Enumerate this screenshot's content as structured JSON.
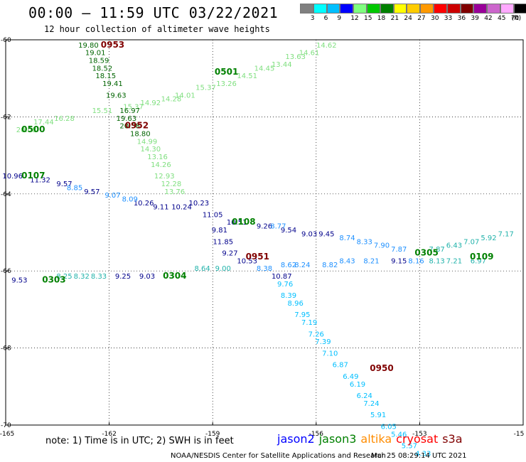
{
  "header": {
    "title": "00:00 – 11:59 UTC 03/22/2021",
    "subtitle": "12 hour collection of altimeter wave heights"
  },
  "colorbar": {
    "unit_label": "(ft)",
    "bins": [
      {
        "label": "3",
        "color": "#808080"
      },
      {
        "label": "6",
        "color": "#00ffff"
      },
      {
        "label": "9",
        "color": "#00bfff"
      },
      {
        "label": "12",
        "color": "#0000ff"
      },
      {
        "label": "15",
        "color": "#7fff7f"
      },
      {
        "label": "18",
        "color": "#00c800"
      },
      {
        "label": "21",
        "color": "#008000"
      },
      {
        "label": "24",
        "color": "#ffff00"
      },
      {
        "label": "27",
        "color": "#ffcc00"
      },
      {
        "label": "30",
        "color": "#ff9900"
      },
      {
        "label": "33",
        "color": "#ff0000"
      },
      {
        "label": "36",
        "color": "#cc0000"
      },
      {
        "label": "39",
        "color": "#800000"
      },
      {
        "label": "42",
        "color": "#990099"
      },
      {
        "label": "45",
        "color": "#cc66cc"
      },
      {
        "label": "70",
        "color": "#ffaaff"
      },
      {
        "label": "",
        "color": "#000000"
      }
    ]
  },
  "chart_data": {
    "type": "scatter",
    "x_ticks": [
      "-165",
      "-162",
      "-159",
      "-156",
      "-153",
      "-15"
    ],
    "y_ticks": [
      "-60",
      "-62",
      "-64",
      "-66",
      "-68",
      "-70"
    ],
    "xlim": [
      -165,
      -150
    ],
    "ylim": [
      -70,
      -60
    ],
    "grid": true,
    "pass_labels": [
      {
        "text": "0953",
        "lon": -161.9,
        "lat": -60.2,
        "color": "#800000"
      },
      {
        "text": "0501",
        "lon": -158.6,
        "lat": -60.9,
        "color": "#008000"
      },
      {
        "text": "0952",
        "lon": -161.2,
        "lat": -62.3,
        "color": "#800000"
      },
      {
        "text": "0500",
        "lon": -164.2,
        "lat": -62.4,
        "color": "#008000"
      },
      {
        "text": "0107",
        "lon": -164.2,
        "lat": -63.6,
        "color": "#008000"
      },
      {
        "text": "0108",
        "lon": -158.1,
        "lat": -64.8,
        "color": "#008000"
      },
      {
        "text": "0951",
        "lon": -157.7,
        "lat": -65.7,
        "color": "#800000"
      },
      {
        "text": "0305",
        "lon": -152.8,
        "lat": -65.6,
        "color": "#008000"
      },
      {
        "text": "0109",
        "lon": -151.2,
        "lat": -65.7,
        "color": "#008000"
      },
      {
        "text": "0303",
        "lon": -163.6,
        "lat": -66.3,
        "color": "#008000"
      },
      {
        "text": "0304",
        "lon": -160.1,
        "lat": -66.2,
        "color": "#008000"
      },
      {
        "text": "0950",
        "lon": -154.1,
        "lat": -68.6,
        "color": "#800000"
      }
    ],
    "tracks": [
      {
        "color": "#7fdf7f",
        "values": [
          {
            "v": "14.62",
            "lon": -155.7,
            "lat": -60.2
          },
          {
            "v": "14.61",
            "lon": -156.2,
            "lat": -60.4
          },
          {
            "v": "13.63",
            "lon": -156.6,
            "lat": -60.5
          },
          {
            "v": "13.44",
            "lon": -157.0,
            "lat": -60.7
          },
          {
            "v": "14.45",
            "lon": -157.5,
            "lat": -60.8
          },
          {
            "v": "14.51",
            "lon": -158.0,
            "lat": -61.0
          },
          {
            "v": "13.26",
            "lon": -158.6,
            "lat": -61.2
          },
          {
            "v": "15.37",
            "lon": -159.2,
            "lat": -61.3
          },
          {
            "v": "14.01",
            "lon": -159.8,
            "lat": -61.5
          },
          {
            "v": "14.28",
            "lon": -160.2,
            "lat": -61.6
          },
          {
            "v": "14.92",
            "lon": -160.8,
            "lat": -61.7
          },
          {
            "v": "15.37",
            "lon": -161.3,
            "lat": -61.8
          },
          {
            "v": "15.51",
            "lon": -162.2,
            "lat": -61.9
          },
          {
            "v": "16.28",
            "lon": -163.3,
            "lat": -62.1
          },
          {
            "v": "17.44",
            "lon": -163.9,
            "lat": -62.2
          },
          {
            "v": "20.08",
            "lon": -164.4,
            "lat": -62.4
          }
        ]
      },
      {
        "color": "#006400",
        "values": [
          {
            "v": "19.80",
            "lon": -162.6,
            "lat": -60.2
          },
          {
            "v": "19.01",
            "lon": -162.4,
            "lat": -60.4
          },
          {
            "v": "18.59",
            "lon": -162.3,
            "lat": -60.6
          },
          {
            "v": "18.52",
            "lon": -162.2,
            "lat": -60.8
          },
          {
            "v": "18.15",
            "lon": -162.1,
            "lat": -61.0
          },
          {
            "v": "19.41",
            "lon": -161.9,
            "lat": -61.2
          },
          {
            "v": "19.63",
            "lon": -161.8,
            "lat": -61.5
          },
          {
            "v": "16.97",
            "lon": -161.4,
            "lat": -61.9
          },
          {
            "v": "19.63",
            "lon": -161.5,
            "lat": -62.1
          },
          {
            "v": "20.58",
            "lon": -161.4,
            "lat": -62.3
          },
          {
            "v": "18.80",
            "lon": -161.1,
            "lat": -62.5
          }
        ]
      },
      {
        "color": "#7fdf7f",
        "values": [
          {
            "v": "14.99",
            "lon": -160.9,
            "lat": -62.7
          },
          {
            "v": "14.30",
            "lon": -160.8,
            "lat": -62.9
          },
          {
            "v": "13.16",
            "lon": -160.6,
            "lat": -63.1
          },
          {
            "v": "14.26",
            "lon": -160.5,
            "lat": -63.3
          },
          {
            "v": "12.93",
            "lon": -160.4,
            "lat": -63.6
          },
          {
            "v": "12.28",
            "lon": -160.2,
            "lat": -63.8
          },
          {
            "v": "13.76",
            "lon": -160.1,
            "lat": -64.0
          }
        ]
      },
      {
        "color": "#00008b",
        "values": [
          {
            "v": "10.96",
            "lon": -164.8,
            "lat": -63.6
          },
          {
            "v": "11.32",
            "lon": -164.0,
            "lat": -63.7
          },
          {
            "v": "9.57",
            "lon": -163.3,
            "lat": -63.8
          },
          {
            "v": "9.57",
            "lon": -162.5,
            "lat": -64.0
          },
          {
            "v": "10.26",
            "lon": -161.0,
            "lat": -64.3
          },
          {
            "v": "9.11",
            "lon": -160.5,
            "lat": -64.4
          },
          {
            "v": "10.24",
            "lon": -159.9,
            "lat": -64.4
          },
          {
            "v": "10.23",
            "lon": -159.4,
            "lat": -64.3
          },
          {
            "v": "11.05",
            "lon": -159.0,
            "lat": -64.6
          },
          {
            "v": "10.51",
            "lon": -158.3,
            "lat": -64.8
          },
          {
            "v": "9.81",
            "lon": -158.8,
            "lat": -65.0
          },
          {
            "v": "11.85",
            "lon": -158.7,
            "lat": -65.3
          },
          {
            "v": "9.27",
            "lon": -158.5,
            "lat": -65.6
          },
          {
            "v": "10.53",
            "lon": -158.0,
            "lat": -65.8
          },
          {
            "v": "9.26",
            "lon": -157.5,
            "lat": -64.9
          },
          {
            "v": "9.54",
            "lon": -156.8,
            "lat": -65.0
          },
          {
            "v": "9.03",
            "lon": -156.2,
            "lat": -65.1
          },
          {
            "v": "9.45",
            "lon": -155.7,
            "lat": -65.1
          },
          {
            "v": "9.15",
            "lon": -153.6,
            "lat": -65.8
          },
          {
            "v": "9.25",
            "lon": -161.6,
            "lat": -66.2
          },
          {
            "v": "9.03",
            "lon": -160.9,
            "lat": -66.2
          },
          {
            "v": "9.53",
            "lon": -164.6,
            "lat": -66.3
          },
          {
            "v": "10.87",
            "lon": -157.0,
            "lat": -66.2
          }
        ]
      },
      {
        "color": "#1e90ff",
        "values": [
          {
            "v": "8.85",
            "lon": -163.0,
            "lat": -63.9
          },
          {
            "v": "9.07",
            "lon": -161.9,
            "lat": -64.1
          },
          {
            "v": "8.09",
            "lon": -161.4,
            "lat": -64.2
          },
          {
            "v": "8.77",
            "lon": -157.1,
            "lat": -64.9
          },
          {
            "v": "8.74",
            "lon": -155.1,
            "lat": -65.2
          },
          {
            "v": "8.33",
            "lon": -154.6,
            "lat": -65.3
          },
          {
            "v": "7.90",
            "lon": -154.1,
            "lat": -65.4
          },
          {
            "v": "7.87",
            "lon": -153.6,
            "lat": -65.5
          },
          {
            "v": "8.16",
            "lon": -153.1,
            "lat": -65.8
          },
          {
            "v": "8.82",
            "lon": -155.6,
            "lat": -65.9
          },
          {
            "v": "8.43",
            "lon": -155.1,
            "lat": -65.8
          },
          {
            "v": "8.21",
            "lon": -154.4,
            "lat": -65.8
          },
          {
            "v": "8.24",
            "lon": -156.4,
            "lat": -65.9
          },
          {
            "v": "8.62",
            "lon": -156.8,
            "lat": -65.9
          },
          {
            "v": "8.38",
            "lon": -157.5,
            "lat": -66.0
          }
        ]
      },
      {
        "color": "#00bfff",
        "values": [
          {
            "v": "9.76",
            "lon": -156.9,
            "lat": -66.4
          },
          {
            "v": "8.39",
            "lon": -156.8,
            "lat": -66.7
          },
          {
            "v": "8.96",
            "lon": -156.6,
            "lat": -66.9
          },
          {
            "v": "7.95",
            "lon": -156.4,
            "lat": -67.2
          },
          {
            "v": "7.19",
            "lon": -156.2,
            "lat": -67.4
          },
          {
            "v": "7.26",
            "lon": -156.0,
            "lat": -67.7
          },
          {
            "v": "7.39",
            "lon": -155.8,
            "lat": -67.9
          },
          {
            "v": "7.10",
            "lon": -155.6,
            "lat": -68.2
          },
          {
            "v": "6.87",
            "lon": -155.3,
            "lat": -68.5
          },
          {
            "v": "6.49",
            "lon": -155.0,
            "lat": -68.8
          },
          {
            "v": "6.19",
            "lon": -154.8,
            "lat": -69.0
          },
          {
            "v": "6.24",
            "lon": -154.6,
            "lat": -69.3
          },
          {
            "v": "7.24",
            "lon": -154.4,
            "lat": -69.5
          },
          {
            "v": "5.91",
            "lon": -154.2,
            "lat": -69.8
          },
          {
            "v": "6.05",
            "lon": -153.9,
            "lat": -70.1
          },
          {
            "v": "5.46",
            "lon": -153.6,
            "lat": -70.3
          },
          {
            "v": "5.57",
            "lon": -153.3,
            "lat": -70.6
          },
          {
            "v": "4.33",
            "lon": -152.9,
            "lat": -70.8
          }
        ]
      },
      {
        "color": "#20b2aa",
        "values": [
          {
            "v": "7.87",
            "lon": -152.5,
            "lat": -65.5
          },
          {
            "v": "6.43",
            "lon": -152.0,
            "lat": -65.4
          },
          {
            "v": "7.07",
            "lon": -151.5,
            "lat": -65.3
          },
          {
            "v": "5.92",
            "lon": -151.0,
            "lat": -65.2
          },
          {
            "v": "7.17",
            "lon": -150.5,
            "lat": -65.1
          },
          {
            "v": "8.13",
            "lon": -152.5,
            "lat": -65.8
          },
          {
            "v": "7.21",
            "lon": -152.0,
            "lat": -65.8
          },
          {
            "v": "6.97",
            "lon": -151.3,
            "lat": -65.8
          },
          {
            "v": "8.25",
            "lon": -163.3,
            "lat": -66.2
          },
          {
            "v": "8.32",
            "lon": -162.8,
            "lat": -66.2
          },
          {
            "v": "8.33",
            "lon": -162.3,
            "lat": -66.2
          },
          {
            "v": "8.64",
            "lon": -159.3,
            "lat": -66.0
          },
          {
            "v": "9.00",
            "lon": -158.7,
            "lat": -66.0
          }
        ]
      }
    ]
  },
  "note": "note: 1) Time is in UTC; 2) SWH is in feet",
  "legend": [
    {
      "label": "jason2",
      "color": "#0000ff"
    },
    {
      "label": "jason3",
      "color": "#008000"
    },
    {
      "label": "altika",
      "color": "#ff8c00"
    },
    {
      "label": "cryosat",
      "color": "#ff0000"
    },
    {
      "label": "s3a",
      "color": "#800000"
    }
  ],
  "footer": {
    "credit": "NOAA/NESDIS Center for Satellite Applications and Research",
    "timestamp": "Mar 25 08:29:14 UTC 2021"
  }
}
